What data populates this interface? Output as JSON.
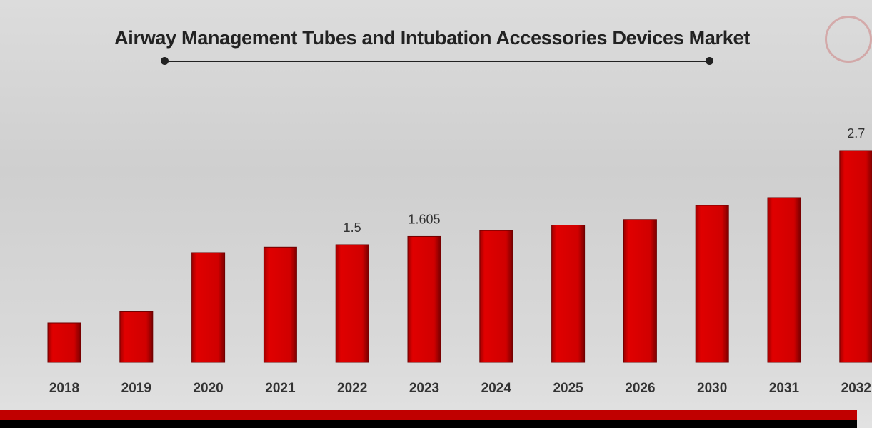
{
  "chart_data": {
    "type": "bar",
    "title": "Airway Management Tubes and Intubation Accessories Devices Market",
    "categories": [
      "2018",
      "2019",
      "2020",
      "2021",
      "2022",
      "2023",
      "2024",
      "2025",
      "2026",
      "2030",
      "2031",
      "2032"
    ],
    "values": [
      0.5,
      0.65,
      1.4,
      1.47,
      1.5,
      1.605,
      1.68,
      1.75,
      1.82,
      2.0,
      2.1,
      2.7
    ],
    "data_labels": {
      "2022": "1.5",
      "2023": "1.605",
      "2032": "2.7"
    },
    "xlabel": "",
    "ylabel": "",
    "ylim": [
      0,
      2.8
    ],
    "grid": false,
    "legend": "none",
    "bar_color": "#d00000"
  }
}
